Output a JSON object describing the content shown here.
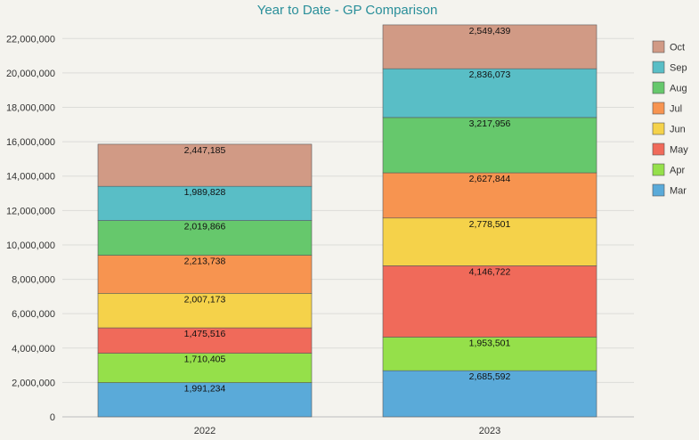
{
  "chart_data": {
    "type": "bar",
    "stacked": true,
    "title": "Year to Date - GP Comparison",
    "xlabel": "",
    "ylabel": "",
    "ylim": [
      0,
      23000000
    ],
    "yticks": [
      0,
      2000000,
      4000000,
      6000000,
      8000000,
      10000000,
      12000000,
      14000000,
      16000000,
      18000000,
      20000000,
      22000000
    ],
    "ytick_labels": [
      "0",
      "2,000,000",
      "4,000,000",
      "6,000,000",
      "8,000,000",
      "10,000,000",
      "12,000,000",
      "14,000,000",
      "16,000,000",
      "18,000,000",
      "20,000,000",
      "22,000,000"
    ],
    "grid": true,
    "legend_position": "right",
    "categories": [
      "2022",
      "2023"
    ],
    "series": [
      {
        "name": "Mar",
        "color": "#5aaad9",
        "values": [
          1991234,
          2685592
        ],
        "labels": [
          "1,991,234",
          "2,685,592"
        ]
      },
      {
        "name": "Apr",
        "color": "#95e04a",
        "values": [
          1710405,
          1953501
        ],
        "labels": [
          "1,710,405",
          "1,953,501"
        ]
      },
      {
        "name": "May",
        "color": "#f06a5a",
        "values": [
          1475516,
          4146722
        ],
        "labels": [
          "1,475,516",
          "4,146,722"
        ]
      },
      {
        "name": "Jun",
        "color": "#f5d24a",
        "values": [
          2007173,
          2778501
        ],
        "labels": [
          "2,007,173",
          "2,778,501"
        ]
      },
      {
        "name": "Jul",
        "color": "#f79450",
        "values": [
          2213738,
          2627844
        ],
        "labels": [
          "2,213,738",
          "2,627,844"
        ]
      },
      {
        "name": "Aug",
        "color": "#66c86c",
        "values": [
          2019866,
          3217956
        ],
        "labels": [
          "2,019,866",
          "3,217,956"
        ]
      },
      {
        "name": "Sep",
        "color": "#59bec6",
        "values": [
          1989828,
          2836073
        ],
        "labels": [
          "1,989,828",
          "2,836,073"
        ]
      },
      {
        "name": "Oct",
        "color": "#d19a85",
        "values": [
          2447185,
          2549439
        ],
        "labels": [
          "2,447,185",
          "2,549,439"
        ]
      }
    ]
  }
}
